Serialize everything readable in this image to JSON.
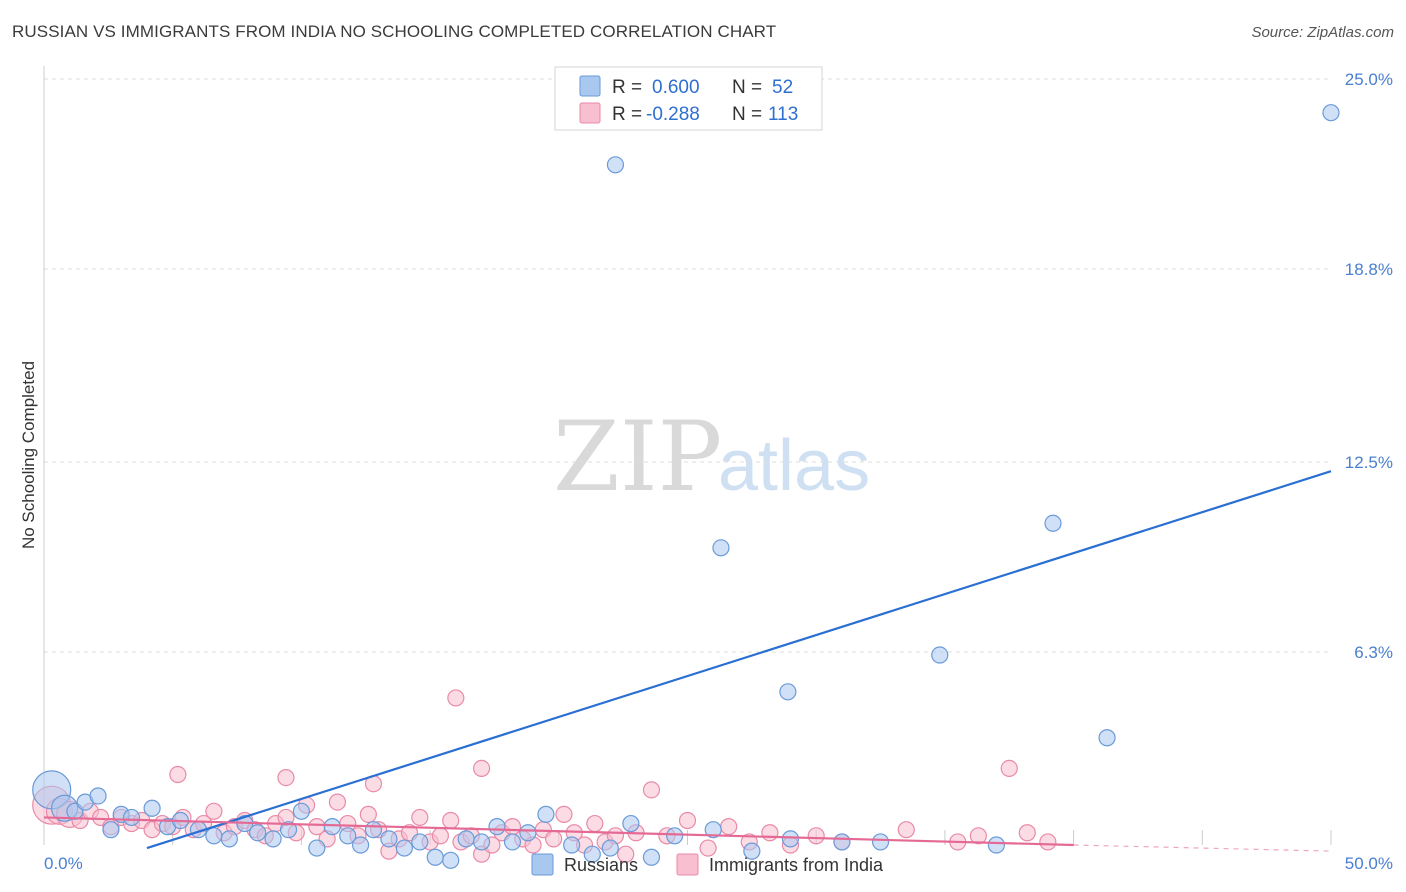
{
  "header": {
    "title": "RUSSIAN VS IMMIGRANTS FROM INDIA NO SCHOOLING COMPLETED CORRELATION CHART",
    "source": "Source: ZipAtlas.com"
  },
  "watermark": {
    "zip": "ZIP",
    "atlas": "atlas"
  },
  "colors": {
    "russians_fill": "#a9c8f0",
    "russians_stroke": "#6a9ad8",
    "russians_line": "#2a6fd2",
    "india_fill": "#f7bfd0",
    "india_stroke": "#e98aa8",
    "india_line": "#e46a95",
    "grid": "#dddddd",
    "tick_text": "#4a7fd0"
  },
  "legend": {
    "rows": [
      {
        "r_label": "R =",
        "r_value": "0.600",
        "n_label": "N =",
        "n_value": "52"
      },
      {
        "r_label": "R =",
        "r_value": "-0.288",
        "n_label": "N =",
        "n_value": "113"
      }
    ]
  },
  "bottom_legend": {
    "series1": "Russians",
    "series2": "Immigrants from India"
  },
  "chart_data": {
    "type": "scatter",
    "title": "RUSSIAN VS IMMIGRANTS FROM INDIA NO SCHOOLING COMPLETED CORRELATION CHART",
    "xlabel": "",
    "ylabel": "No Schooling Completed",
    "xlim": [
      0,
      50
    ],
    "ylim": [
      0,
      25
    ],
    "x_tick_labels": [
      "0.0%",
      "50.0%"
    ],
    "y_ticks": [
      6.3,
      12.5,
      18.8,
      25.0
    ],
    "y_tick_labels": [
      "6.3%",
      "12.5%",
      "18.8%",
      "25.0%"
    ],
    "series": [
      {
        "name": "Russians",
        "r": 0.6,
        "n": 52,
        "trend": {
          "x": [
            4,
            50
          ],
          "y": [
            -0.1,
            12.2
          ]
        },
        "points": [
          {
            "x": 0.3,
            "y": 1.8,
            "s": 3
          },
          {
            "x": 0.8,
            "y": 1.2,
            "s": 2
          },
          {
            "x": 1.2,
            "y": 1.1,
            "s": 1
          },
          {
            "x": 1.6,
            "y": 1.4,
            "s": 1
          },
          {
            "x": 2.1,
            "y": 1.6,
            "s": 1
          },
          {
            "x": 2.6,
            "y": 0.5,
            "s": 1
          },
          {
            "x": 3.0,
            "y": 1.0,
            "s": 1
          },
          {
            "x": 3.4,
            "y": 0.9,
            "s": 1
          },
          {
            "x": 4.2,
            "y": 1.2,
            "s": 1
          },
          {
            "x": 4.8,
            "y": 0.6,
            "s": 1
          },
          {
            "x": 5.3,
            "y": 0.8,
            "s": 1
          },
          {
            "x": 6.0,
            "y": 0.5,
            "s": 1
          },
          {
            "x": 6.6,
            "y": 0.3,
            "s": 1
          },
          {
            "x": 7.2,
            "y": 0.2,
            "s": 1
          },
          {
            "x": 7.8,
            "y": 0.7,
            "s": 1
          },
          {
            "x": 8.3,
            "y": 0.4,
            "s": 1
          },
          {
            "x": 8.9,
            "y": 0.2,
            "s": 1
          },
          {
            "x": 9.5,
            "y": 0.5,
            "s": 1
          },
          {
            "x": 10.0,
            "y": 1.1,
            "s": 1
          },
          {
            "x": 10.6,
            "y": -0.1,
            "s": 1
          },
          {
            "x": 11.2,
            "y": 0.6,
            "s": 1
          },
          {
            "x": 11.8,
            "y": 0.3,
            "s": 1
          },
          {
            "x": 12.3,
            "y": 0.0,
            "s": 1
          },
          {
            "x": 12.8,
            "y": 0.5,
            "s": 1
          },
          {
            "x": 13.4,
            "y": 0.2,
            "s": 1
          },
          {
            "x": 14.0,
            "y": -0.1,
            "s": 1
          },
          {
            "x": 14.6,
            "y": 0.1,
            "s": 1
          },
          {
            "x": 15.2,
            "y": -0.4,
            "s": 1
          },
          {
            "x": 15.8,
            "y": -0.5,
            "s": 1
          },
          {
            "x": 16.4,
            "y": 0.2,
            "s": 1
          },
          {
            "x": 17.0,
            "y": 0.1,
            "s": 1
          },
          {
            "x": 17.6,
            "y": 0.6,
            "s": 1
          },
          {
            "x": 18.2,
            "y": 0.1,
            "s": 1
          },
          {
            "x": 18.8,
            "y": 0.4,
            "s": 1
          },
          {
            "x": 19.5,
            "y": 1.0,
            "s": 1
          },
          {
            "x": 20.5,
            "y": 0.0,
            "s": 1
          },
          {
            "x": 21.3,
            "y": -0.3,
            "s": 1
          },
          {
            "x": 22.0,
            "y": -0.1,
            "s": 1
          },
          {
            "x": 22.8,
            "y": 0.7,
            "s": 1
          },
          {
            "x": 23.6,
            "y": -0.4,
            "s": 1
          },
          {
            "x": 24.5,
            "y": 0.3,
            "s": 1
          },
          {
            "x": 26.0,
            "y": 0.5,
            "s": 1
          },
          {
            "x": 27.5,
            "y": -0.2,
            "s": 1
          },
          {
            "x": 29.0,
            "y": 0.2,
            "s": 1
          },
          {
            "x": 31.0,
            "y": 0.1,
            "s": 1
          },
          {
            "x": 32.5,
            "y": 0.1,
            "s": 1
          },
          {
            "x": 37.0,
            "y": 0.0,
            "s": 1
          },
          {
            "x": 22.2,
            "y": 22.2,
            "s": 1
          },
          {
            "x": 26.3,
            "y": 9.7,
            "s": 1
          },
          {
            "x": 28.9,
            "y": 5.0,
            "s": 1
          },
          {
            "x": 34.8,
            "y": 6.2,
            "s": 1
          },
          {
            "x": 39.2,
            "y": 10.5,
            "s": 1
          },
          {
            "x": 41.3,
            "y": 3.5,
            "s": 1
          },
          {
            "x": 50.0,
            "y": 23.9,
            "s": 1
          }
        ]
      },
      {
        "name": "Immigrants from India",
        "r": -0.288,
        "n": 113,
        "trend": {
          "x": [
            0,
            40
          ],
          "y": [
            0.9,
            0.0
          ],
          "dashed_to": {
            "x": 50,
            "y": -0.2
          }
        },
        "points": [
          {
            "x": 0.3,
            "y": 1.3,
            "s": 3
          },
          {
            "x": 0.6,
            "y": 1.1,
            "s": 2
          },
          {
            "x": 1.0,
            "y": 1.0,
            "s": 2
          },
          {
            "x": 1.4,
            "y": 0.8,
            "s": 1
          },
          {
            "x": 1.8,
            "y": 1.1,
            "s": 1
          },
          {
            "x": 2.2,
            "y": 0.9,
            "s": 1
          },
          {
            "x": 2.6,
            "y": 0.6,
            "s": 1
          },
          {
            "x": 3.0,
            "y": 0.9,
            "s": 1
          },
          {
            "x": 3.4,
            "y": 0.7,
            "s": 1
          },
          {
            "x": 3.8,
            "y": 0.8,
            "s": 1
          },
          {
            "x": 4.2,
            "y": 0.5,
            "s": 1
          },
          {
            "x": 4.6,
            "y": 0.7,
            "s": 1
          },
          {
            "x": 5.0,
            "y": 0.6,
            "s": 1
          },
          {
            "x": 5.4,
            "y": 0.9,
            "s": 1
          },
          {
            "x": 5.8,
            "y": 0.5,
            "s": 1
          },
          {
            "x": 6.2,
            "y": 0.7,
            "s": 1
          },
          {
            "x": 6.6,
            "y": 1.1,
            "s": 1
          },
          {
            "x": 7.0,
            "y": 0.4,
            "s": 1
          },
          {
            "x": 7.4,
            "y": 0.6,
            "s": 1
          },
          {
            "x": 7.8,
            "y": 0.8,
            "s": 1
          },
          {
            "x": 8.2,
            "y": 0.5,
            "s": 1
          },
          {
            "x": 8.6,
            "y": 0.3,
            "s": 1
          },
          {
            "x": 9.0,
            "y": 0.7,
            "s": 1
          },
          {
            "x": 9.4,
            "y": 0.9,
            "s": 1
          },
          {
            "x": 9.8,
            "y": 0.4,
            "s": 1
          },
          {
            "x": 10.2,
            "y": 1.3,
            "s": 1
          },
          {
            "x": 10.6,
            "y": 0.6,
            "s": 1
          },
          {
            "x": 11.0,
            "y": 0.2,
            "s": 1
          },
          {
            "x": 11.4,
            "y": 1.4,
            "s": 1
          },
          {
            "x": 11.8,
            "y": 0.7,
            "s": 1
          },
          {
            "x": 12.2,
            "y": 0.3,
            "s": 1
          },
          {
            "x": 12.6,
            "y": 1.0,
            "s": 1
          },
          {
            "x": 13.0,
            "y": 0.5,
            "s": 1
          },
          {
            "x": 13.4,
            "y": -0.2,
            "s": 1
          },
          {
            "x": 13.8,
            "y": 0.2,
            "s": 1
          },
          {
            "x": 14.2,
            "y": 0.4,
            "s": 1
          },
          {
            "x": 14.6,
            "y": 0.9,
            "s": 1
          },
          {
            "x": 15.0,
            "y": 0.1,
            "s": 1
          },
          {
            "x": 15.4,
            "y": 0.3,
            "s": 1
          },
          {
            "x": 15.8,
            "y": 0.8,
            "s": 1
          },
          {
            "x": 16.2,
            "y": 0.1,
            "s": 1
          },
          {
            "x": 16.6,
            "y": 0.3,
            "s": 1
          },
          {
            "x": 17.0,
            "y": -0.3,
            "s": 1
          },
          {
            "x": 17.4,
            "y": 0.0,
            "s": 1
          },
          {
            "x": 17.8,
            "y": 0.4,
            "s": 1
          },
          {
            "x": 18.2,
            "y": 0.6,
            "s": 1
          },
          {
            "x": 18.6,
            "y": 0.2,
            "s": 1
          },
          {
            "x": 19.0,
            "y": 0.0,
            "s": 1
          },
          {
            "x": 19.4,
            "y": 0.5,
            "s": 1
          },
          {
            "x": 19.8,
            "y": 0.2,
            "s": 1
          },
          {
            "x": 20.2,
            "y": 1.0,
            "s": 1
          },
          {
            "x": 20.6,
            "y": 0.4,
            "s": 1
          },
          {
            "x": 21.0,
            "y": 0.0,
            "s": 1
          },
          {
            "x": 21.4,
            "y": 0.7,
            "s": 1
          },
          {
            "x": 21.8,
            "y": 0.1,
            "s": 1
          },
          {
            "x": 22.2,
            "y": 0.3,
            "s": 1
          },
          {
            "x": 22.6,
            "y": -0.3,
            "s": 1
          },
          {
            "x": 23.0,
            "y": 0.4,
            "s": 1
          },
          {
            "x": 23.6,
            "y": 1.8,
            "s": 1
          },
          {
            "x": 24.2,
            "y": 0.3,
            "s": 1
          },
          {
            "x": 25.0,
            "y": 0.8,
            "s": 1
          },
          {
            "x": 25.8,
            "y": -0.1,
            "s": 1
          },
          {
            "x": 26.6,
            "y": 0.6,
            "s": 1
          },
          {
            "x": 27.4,
            "y": 0.1,
            "s": 1
          },
          {
            "x": 28.2,
            "y": 0.4,
            "s": 1
          },
          {
            "x": 29.0,
            "y": 0.0,
            "s": 1
          },
          {
            "x": 30.0,
            "y": 0.3,
            "s": 1
          },
          {
            "x": 31.0,
            "y": 0.1,
            "s": 1
          },
          {
            "x": 33.5,
            "y": 0.5,
            "s": 1
          },
          {
            "x": 35.5,
            "y": 0.1,
            "s": 1
          },
          {
            "x": 36.3,
            "y": 0.3,
            "s": 1
          },
          {
            "x": 37.5,
            "y": 2.5,
            "s": 1
          },
          {
            "x": 38.2,
            "y": 0.4,
            "s": 1
          },
          {
            "x": 39.0,
            "y": 0.1,
            "s": 1
          },
          {
            "x": 16.0,
            "y": 4.8,
            "s": 1
          },
          {
            "x": 12.8,
            "y": 2.0,
            "s": 1
          },
          {
            "x": 9.4,
            "y": 2.2,
            "s": 1
          },
          {
            "x": 5.2,
            "y": 2.3,
            "s": 1
          },
          {
            "x": 17.0,
            "y": 2.5,
            "s": 1
          }
        ]
      }
    ]
  }
}
